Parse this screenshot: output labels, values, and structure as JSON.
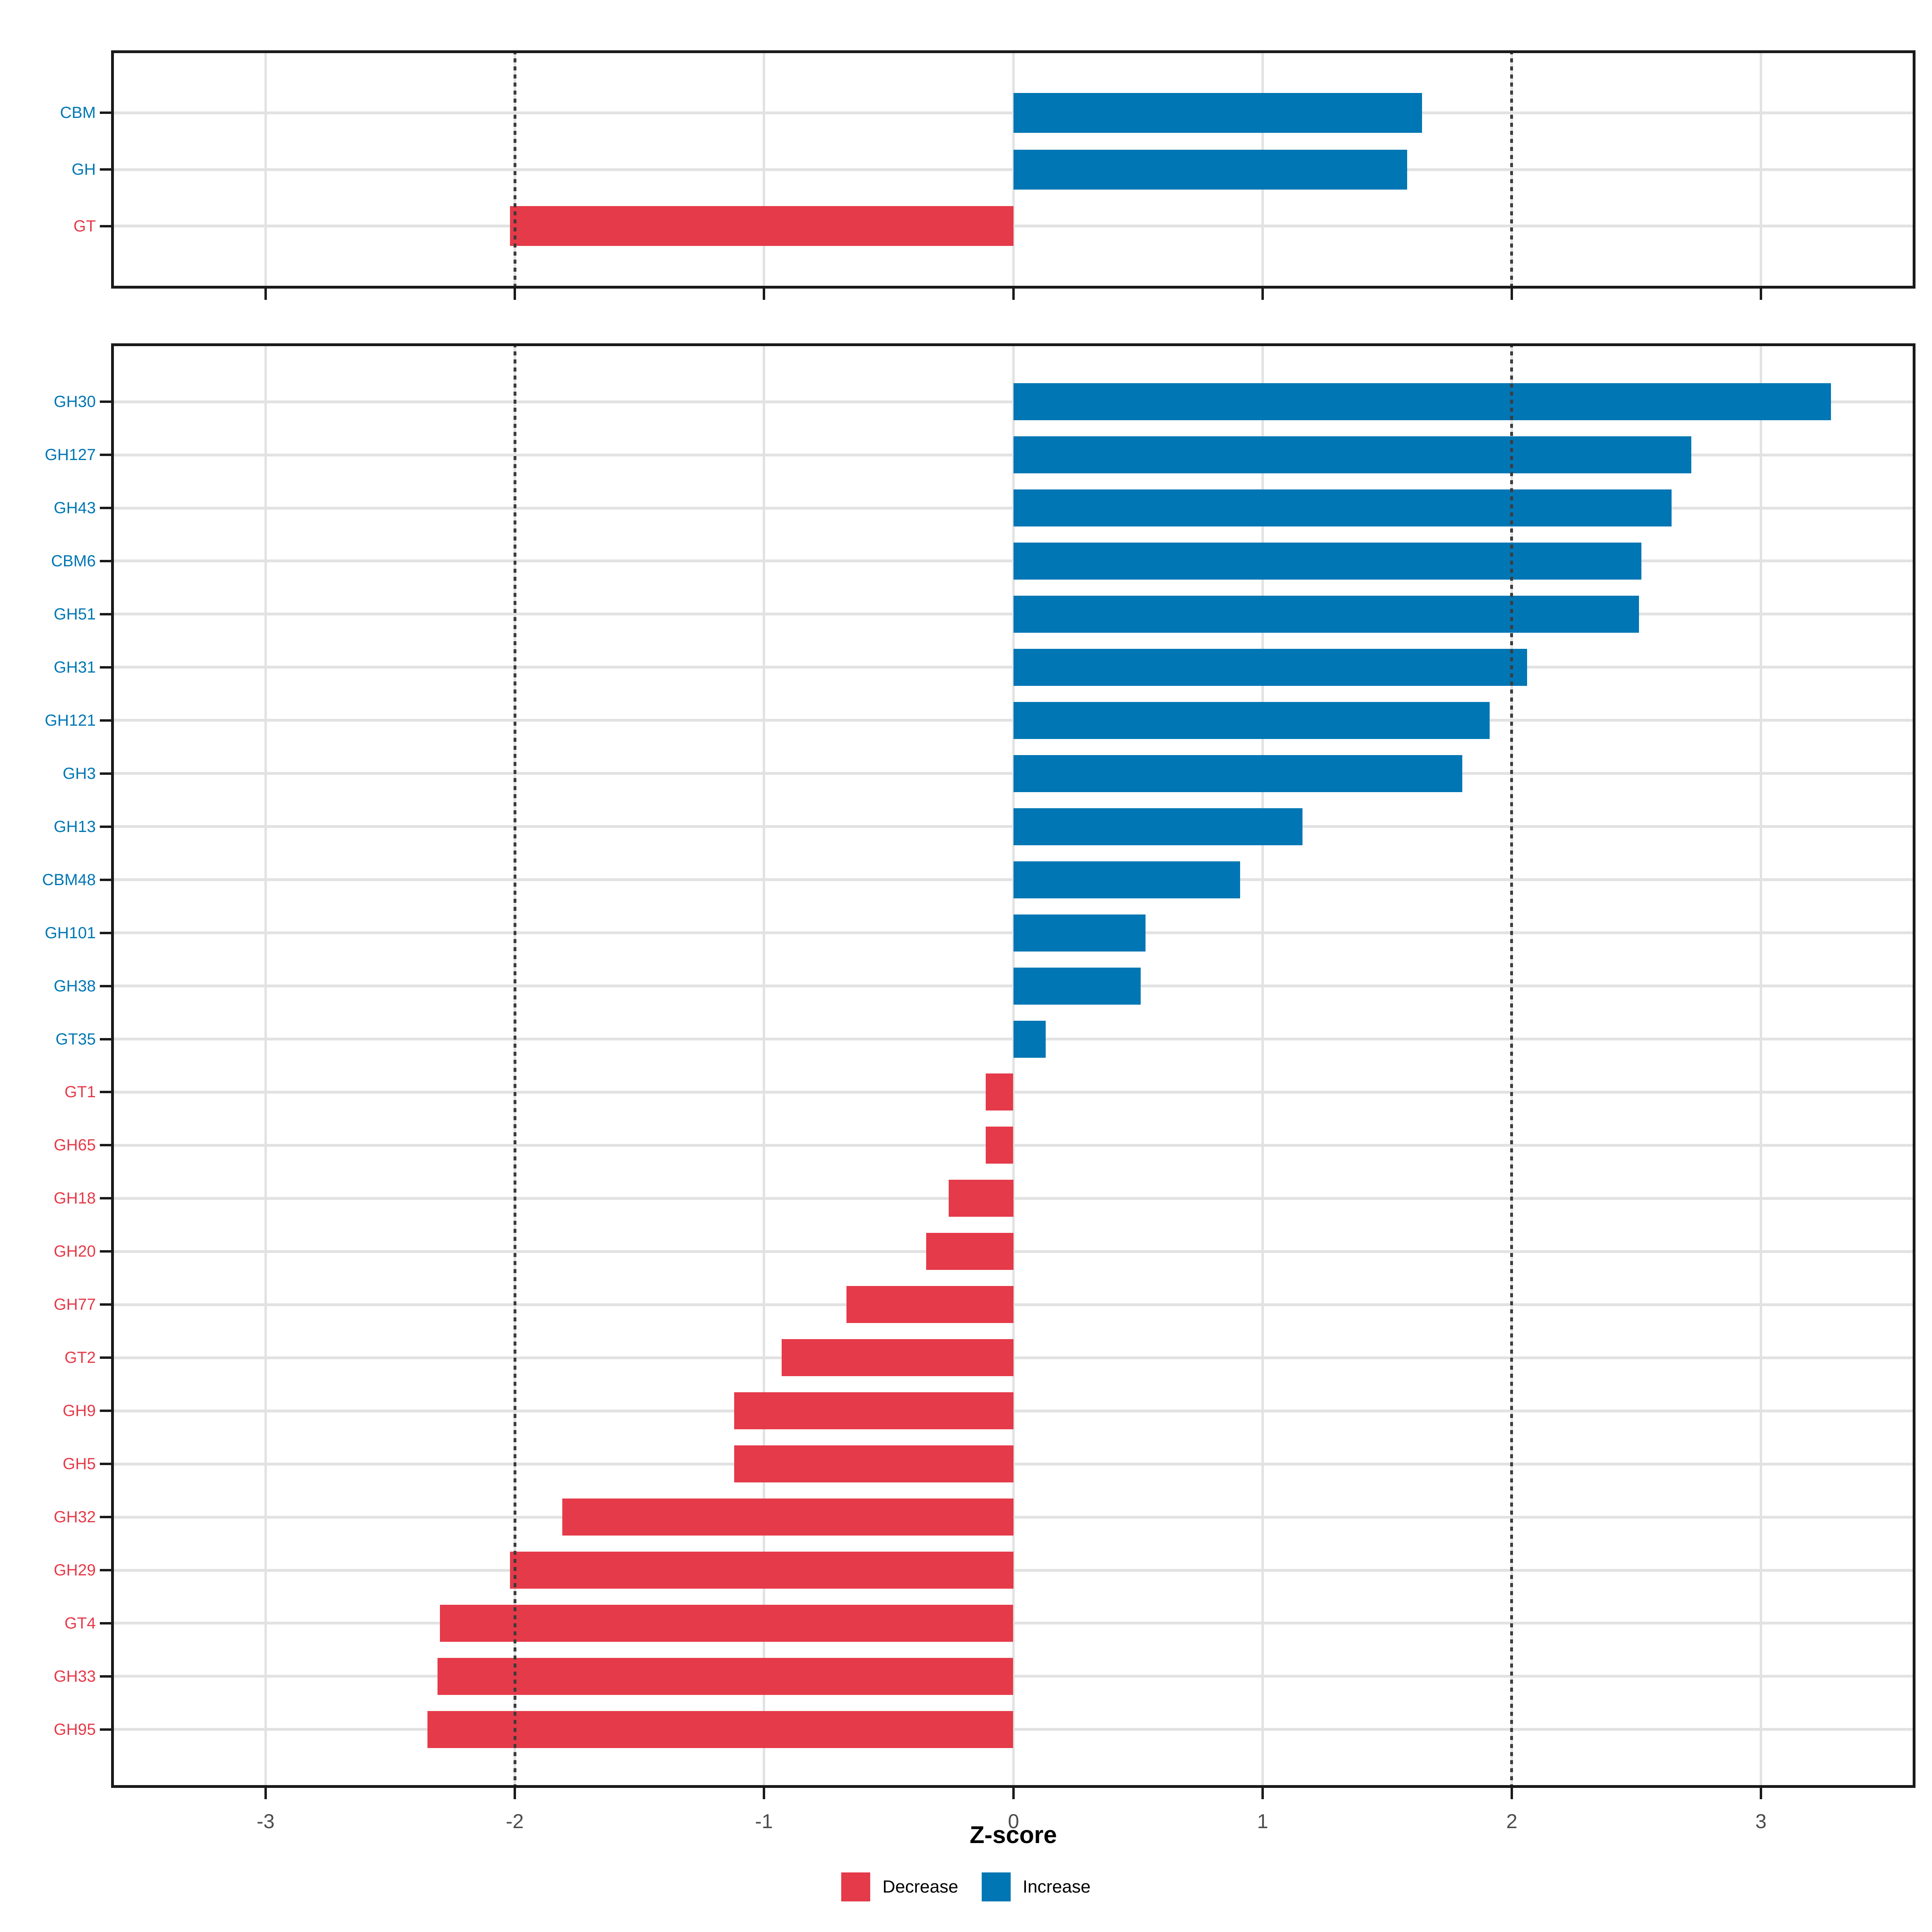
{
  "figure": {
    "background": "#ffffff",
    "description": "Two-panel horizontal bar chart of CAZyme Z-scores"
  },
  "colors": {
    "increase": "#0076b4",
    "decrease": "#e53a49",
    "grid": "#e2e2e2",
    "axis_line": "#1a1a1a",
    "tick_label": "#4d4d4d",
    "reference_line": "#3c3c3c",
    "axis_title": "#000000",
    "legend_text": "#000000"
  },
  "x_axis": {
    "title": "Z-score",
    "tick_labels": [
      "-3",
      "-2",
      "-1",
      "0",
      "1",
      "2",
      "3"
    ],
    "tick_values": [
      -3,
      -2,
      -1,
      0,
      1,
      2,
      3
    ],
    "range": [
      -3.62,
      3.62
    ],
    "reference_lines": [
      -2,
      2
    ]
  },
  "legend": {
    "items": [
      {
        "label": "Decrease",
        "color": "#e53a49"
      },
      {
        "label": "Increase",
        "color": "#0076b4"
      }
    ]
  },
  "chart_data": [
    {
      "type": "bar",
      "orientation": "horizontal",
      "panel": "enzyme-classes",
      "title": "",
      "xlabel": "Z-score",
      "ylabel": "",
      "xlim": [
        -3.62,
        3.62
      ],
      "grid": true,
      "categories": [
        "CBM",
        "GH",
        "GT"
      ],
      "values": [
        1.64,
        1.58,
        -2.02
      ],
      "directions": [
        "Increase",
        "Increase",
        "Decrease"
      ]
    },
    {
      "type": "bar",
      "orientation": "horizontal",
      "panel": "cazyme-families",
      "title": "",
      "xlabel": "Z-score",
      "ylabel": "",
      "xlim": [
        -3.62,
        3.62
      ],
      "grid": true,
      "categories": [
        "GH30",
        "GH127",
        "GH43",
        "CBM6",
        "GH51",
        "GH31",
        "GH121",
        "GH3",
        "GH13",
        "CBM48",
        "GH101",
        "GH38",
        "GT35",
        "GT1",
        "GH65",
        "GH18",
        "GH20",
        "GH77",
        "GT2",
        "GH9",
        "GH5",
        "GH32",
        "GH29",
        "GT4",
        "GH33",
        "GH95"
      ],
      "values": [
        3.28,
        2.72,
        2.64,
        2.52,
        2.51,
        2.06,
        1.91,
        1.8,
        1.16,
        0.91,
        0.53,
        0.51,
        0.13,
        -0.11,
        -0.11,
        -0.26,
        -0.35,
        -0.67,
        -0.93,
        -1.12,
        -1.12,
        -1.81,
        -2.02,
        -2.3,
        -2.31,
        -2.35
      ],
      "directions": [
        "Increase",
        "Increase",
        "Increase",
        "Increase",
        "Increase",
        "Increase",
        "Increase",
        "Increase",
        "Increase",
        "Increase",
        "Increase",
        "Increase",
        "Increase",
        "Decrease",
        "Decrease",
        "Decrease",
        "Decrease",
        "Decrease",
        "Decrease",
        "Decrease",
        "Decrease",
        "Decrease",
        "Decrease",
        "Decrease",
        "Decrease",
        "Decrease"
      ]
    }
  ]
}
